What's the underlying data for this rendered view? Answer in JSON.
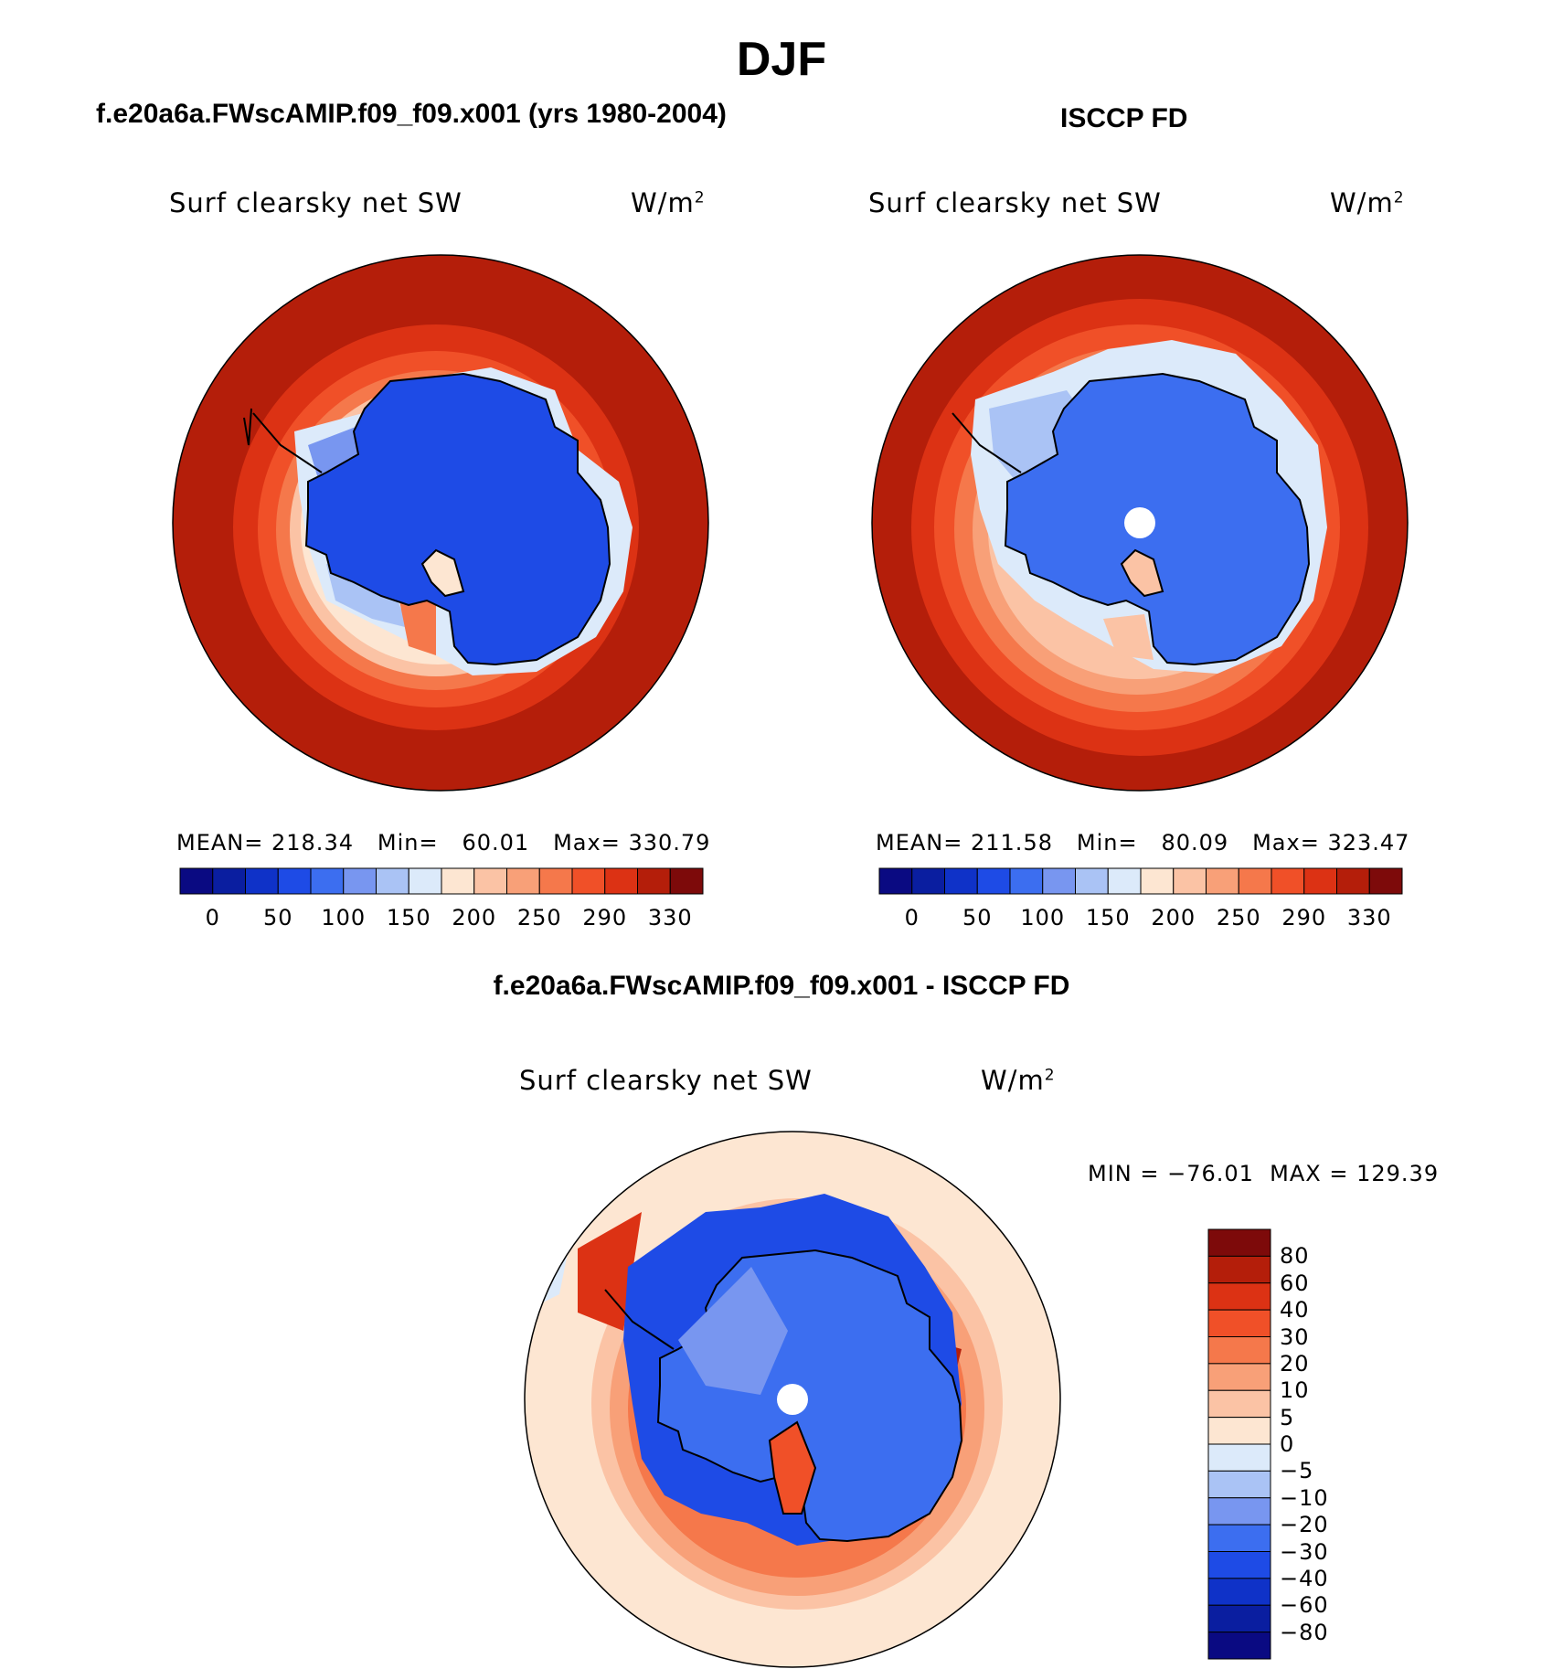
{
  "title": "DJF",
  "panels": [
    {
      "id": "model",
      "header": "f.e20a6a.FWscAMIP.f09_f09.x001 (yrs 1980-2004)",
      "variable": "Surf clearsky net SW",
      "units": "W/m",
      "units_sup": "2",
      "stats": {
        "mean_label": "MEAN=",
        "mean": "218.34",
        "min_label": "Min=",
        "min": "60.01",
        "max_label": "Max=",
        "max": "330.79"
      }
    },
    {
      "id": "obs",
      "header": "ISCCP FD",
      "variable": "Surf clearsky net SW",
      "units": "W/m",
      "units_sup": "2",
      "stats": {
        "mean_label": "MEAN=",
        "mean": "211.58",
        "min_label": "Min=",
        "min": "80.09",
        "max_label": "Max=",
        "max": "323.47"
      }
    },
    {
      "id": "diff",
      "header": "f.e20a6a.FWscAMIP.f09_f09.x001 - ISCCP FD",
      "variable": "Surf clearsky net SW",
      "units": "W/m",
      "units_sup": "2",
      "minmax": "MIN = −76.01  MAX = 129.39"
    }
  ],
  "abs_colorbar": {
    "colors": [
      "#0a0a82",
      "#0a1ea0",
      "#0f32c8",
      "#1e4be6",
      "#3c6ef0",
      "#7896f0",
      "#aac3f5",
      "#dceafa",
      "#fde6d2",
      "#fbc3a5",
      "#f8a078",
      "#f5784b",
      "#f05028",
      "#dc3214",
      "#b41e0a",
      "#7d0a0a"
    ],
    "tick_labels": [
      "0",
      "50",
      "100",
      "150",
      "200",
      "250",
      "290",
      "330"
    ]
  },
  "diff_colorbar": {
    "colors": [
      "#0a0a82",
      "#0a1ea0",
      "#0f32c8",
      "#1e4be6",
      "#3c6ef0",
      "#7896f0",
      "#aac3f5",
      "#dceafa",
      "#fde6d2",
      "#fbc3a5",
      "#f8a078",
      "#f5784b",
      "#f05028",
      "#dc3214",
      "#b41e0a",
      "#7d0a0a"
    ],
    "tick_labels": [
      "80",
      "60",
      "40",
      "30",
      "20",
      "10",
      "5",
      "0",
      "−5",
      "−10",
      "−20",
      "−30",
      "−40",
      "−60",
      "−80"
    ]
  }
}
